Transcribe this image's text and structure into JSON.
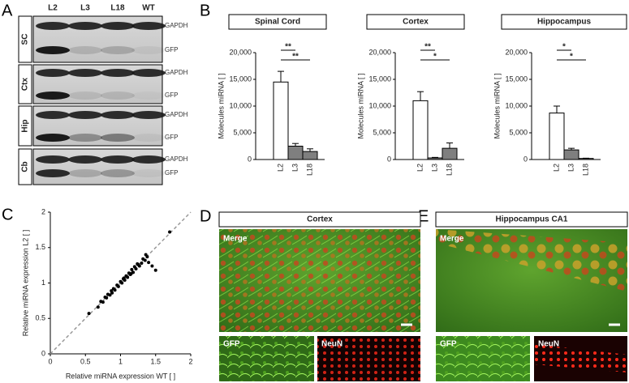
{
  "panel_labels": [
    "A",
    "B",
    "C",
    "D",
    "E"
  ],
  "blot": {
    "lanes": [
      "L2",
      "L3",
      "L18",
      "WT"
    ],
    "tissues": [
      {
        "name": "SC",
        "bands": [
          "GAPDH",
          "GFP"
        ]
      },
      {
        "name": "Ctx",
        "bands": [
          "GAPDH",
          "GFP"
        ]
      },
      {
        "name": "Hip",
        "bands": [
          "GAPDH",
          "GFP"
        ]
      },
      {
        "name": "Cb",
        "bands": [
          "GAPDH",
          "GFP"
        ]
      }
    ]
  },
  "chart_data": [
    {
      "type": "bar",
      "title": "Spinal Cord",
      "y_label": "Molecules miRNA [ ]",
      "categories": [
        "L2",
        "L3",
        "L18"
      ],
      "values": [
        14500,
        2500,
        1500
      ],
      "errors": [
        2000,
        500,
        500
      ],
      "colors": [
        "#ffffff",
        "#7f7f7f",
        "#7f7f7f"
      ],
      "annotations": [
        "**",
        "**"
      ],
      "ylim": [
        0,
        20000
      ],
      "yticks": [
        0,
        {
          "value": 5000,
          "label": "5,000"
        },
        {
          "value": 10000,
          "label": "10,000"
        },
        {
          "value": 15000,
          "label": "15,000"
        },
        {
          "value": 20000,
          "label": "20,000"
        }
      ]
    },
    {
      "type": "bar",
      "title": "Cortex",
      "y_label": "Molecules miRNA [ ]",
      "categories": [
        "L2",
        "L3",
        "L18"
      ],
      "values": [
        11000,
        300,
        2100
      ],
      "errors": [
        1700,
        100,
        1000
      ],
      "colors": [
        "#ffffff",
        "#7f7f7f",
        "#7f7f7f"
      ],
      "annotations": [
        "**",
        "*"
      ],
      "ylim": [
        0,
        20000
      ],
      "yticks": [
        0,
        {
          "value": 5000,
          "label": "5,000"
        },
        {
          "value": 10000,
          "label": "10,000"
        },
        {
          "value": 15000,
          "label": "15,000"
        },
        {
          "value": 20000,
          "label": "20,000"
        }
      ]
    },
    {
      "type": "bar",
      "title": "Hippocampus",
      "y_label": "Molecules miRNA [ ]",
      "categories": [
        "L2",
        "L3",
        "L18"
      ],
      "values": [
        8700,
        1800,
        200
      ],
      "errors": [
        1300,
        300,
        50
      ],
      "colors": [
        "#ffffff",
        "#7f7f7f",
        "#7f7f7f"
      ],
      "annotations": [
        "*",
        "*"
      ],
      "ylim": [
        0,
        20000
      ],
      "yticks": [
        0,
        {
          "value": 5000,
          "label": "5,000"
        },
        {
          "value": 10000,
          "label": "10,000"
        },
        {
          "value": 15000,
          "label": "15,000"
        },
        {
          "value": 20000,
          "label": "20,000"
        }
      ]
    },
    {
      "type": "scatter",
      "x_label": "Relative miRNA expression WT [ ]",
      "y_label": "Relative miRNA expression L2 [ ]",
      "x": [
        0.55,
        0.68,
        0.72,
        0.75,
        0.78,
        0.8,
        0.82,
        0.85,
        0.87,
        0.9,
        0.92,
        0.95,
        0.97,
        1.0,
        1.02,
        1.04,
        1.06,
        1.08,
        1.1,
        1.12,
        1.14,
        1.16,
        1.18,
        1.2,
        1.22,
        1.25,
        1.27,
        1.3,
        1.32,
        1.35,
        1.38,
        1.4,
        1.45,
        1.5,
        1.7,
        0.88,
        1.05,
        1.15,
        1.24,
        1.36
      ],
      "y": [
        0.57,
        0.66,
        0.74,
        0.73,
        0.8,
        0.79,
        0.84,
        0.83,
        0.89,
        0.92,
        0.9,
        0.97,
        0.95,
        1.02,
        1.0,
        1.06,
        1.04,
        1.1,
        1.08,
        1.14,
        1.12,
        1.19,
        1.15,
        1.23,
        1.2,
        1.26,
        1.24,
        1.28,
        1.34,
        1.32,
        1.37,
        1.29,
        1.24,
        1.18,
        1.72,
        0.86,
        1.07,
        1.13,
        1.27,
        1.4
      ],
      "color": "#000000",
      "xlim": [
        0,
        2
      ],
      "ylim": [
        0,
        2
      ],
      "xticks": [
        0,
        0.5,
        1,
        1.5,
        2
      ],
      "yticks": [
        0,
        0.5,
        1,
        1.5,
        2
      ]
    }
  ],
  "micrographs": [
    {
      "title": "Cortex",
      "merge": "Merge",
      "channels": [
        "GFP",
        "NeuN"
      ]
    },
    {
      "title": "Hippocampus CA1",
      "merge": "Merge",
      "channels": [
        "GFP",
        "NeuN"
      ]
    }
  ]
}
